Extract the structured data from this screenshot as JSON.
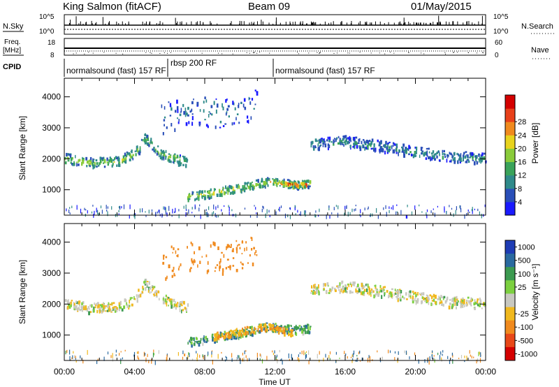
{
  "header": {
    "station": "King Salmon (fitACF)",
    "beam": "Beam 09",
    "date": "01/May/2015"
  },
  "noise_panel": {
    "left_label": "N.Sky",
    "right_label": "N.Search",
    "left_ticks": [
      "10^5",
      "10^0"
    ],
    "right_ticks": [
      "10^5",
      "10^0"
    ]
  },
  "freq_panel": {
    "left_label_line1": "Freq.",
    "left_label_line2": "[MHz]",
    "right_label": "Nave",
    "left_ticks": [
      "18",
      "8"
    ],
    "right_ticks": [
      "60",
      "0"
    ]
  },
  "cpid": {
    "label": "CPID",
    "segments": [
      "normalsound (fast) 157 RF",
      "rbsp 200 RF",
      "normalsound (fast) 157 RF"
    ]
  },
  "x_axis": {
    "label": "Time UT",
    "ticks": [
      "00:00",
      "04:00",
      "08:00",
      "12:00",
      "16:00",
      "20:00",
      "00:00"
    ]
  },
  "chart_data": [
    {
      "type": "heatmap",
      "title": "",
      "xlabel": "",
      "ylabel": "Slant Range [km]",
      "xlim": [
        0,
        24
      ],
      "ylim": [
        180,
        4600
      ],
      "yticks": [
        "1000",
        "2000",
        "3000",
        "4000"
      ],
      "colorbar": {
        "label": "Power [dB]",
        "ticks": [
          "4",
          "8",
          "12",
          "16",
          "20",
          "24",
          "28"
        ],
        "colors": [
          "#1a1aff",
          "#2a4fb8",
          "#2f8a8a",
          "#3aa35a",
          "#8acb3a",
          "#e8d31e",
          "#f08a1e",
          "#e8401a",
          "#d40000"
        ]
      },
      "echo_regions": [
        {
          "name": "main",
          "t": [
            0.0,
            1.5,
            3.0,
            4.0,
            4.6,
            5.5,
            7.0
          ],
          "r": [
            2050,
            1900,
            1950,
            2200,
            2700,
            2200,
            1900
          ],
          "halfwidth": 160,
          "level": 14
        },
        {
          "name": "low",
          "t": [
            7.0,
            8.5,
            10.0,
            11.5,
            13.0,
            14.0
          ],
          "r": [
            800,
            950,
            1100,
            1300,
            1200,
            1250
          ],
          "halfwidth": 130,
          "level": 16
        },
        {
          "name": "peak",
          "t": [
            12.2,
            13.0,
            13.8
          ],
          "r": [
            1250,
            1200,
            1200
          ],
          "halfwidth": 70,
          "level": 26
        },
        {
          "name": "late",
          "t": [
            14.0,
            16.0,
            18.0,
            20.0,
            22.0,
            24.0
          ],
          "r": [
            2500,
            2600,
            2450,
            2250,
            2100,
            2050
          ],
          "halfwidth": 170,
          "level": 8
        },
        {
          "name": "scatter_top",
          "t": [
            5.5,
            7.0,
            9.0,
            11.0
          ],
          "r": [
            3300,
            3600,
            3500,
            3800
          ],
          "halfwidth": 500,
          "level": 6
        }
      ]
    },
    {
      "type": "heatmap",
      "title": "",
      "xlabel": "Time UT",
      "ylabel": "Slant Range [km]",
      "xlim": [
        0,
        24
      ],
      "ylim": [
        180,
        4600
      ],
      "yticks": [
        "1000",
        "2000",
        "3000",
        "4000"
      ],
      "colorbar": {
        "label": "Velocity [m s⁻¹]",
        "ticks": [
          "1000",
          "500",
          "100",
          "25",
          "-25",
          "-100",
          "-500",
          "-1000"
        ],
        "colors": [
          "#1e3cb4",
          "#2a6aa0",
          "#3c9a50",
          "#7cd040",
          "#c8c8c0",
          "#f0b81e",
          "#f08a1e",
          "#e84818",
          "#d40000"
        ]
      },
      "echo_regions": [
        {
          "name": "main",
          "t": [
            0.0,
            1.5,
            3.0,
            4.0,
            4.6,
            5.5,
            7.0
          ],
          "r": [
            2050,
            1900,
            1950,
            2200,
            2700,
            2200,
            1900
          ],
          "halfwidth": 160,
          "velocity": 0
        },
        {
          "name": "low",
          "t": [
            7.0,
            8.5,
            10.0,
            11.5,
            13.0,
            14.0
          ],
          "r": [
            800,
            950,
            1100,
            1300,
            1200,
            1250
          ],
          "halfwidth": 130,
          "velocity": 80
        },
        {
          "name": "orange_band",
          "t": [
            8.5,
            10.0,
            11.5,
            13.0
          ],
          "r": [
            1000,
            1150,
            1300,
            1100
          ],
          "halfwidth": 110,
          "velocity": -90
        },
        {
          "name": "late",
          "t": [
            14.0,
            16.0,
            18.0,
            20.0,
            22.0,
            24.0
          ],
          "r": [
            2500,
            2600,
            2450,
            2250,
            2100,
            2050
          ],
          "halfwidth": 170,
          "velocity": 0
        },
        {
          "name": "scatter_top",
          "t": [
            5.5,
            7.0,
            9.0,
            11.0
          ],
          "r": [
            3300,
            3600,
            3500,
            3800
          ],
          "halfwidth": 500,
          "velocity": -200
        }
      ]
    }
  ]
}
